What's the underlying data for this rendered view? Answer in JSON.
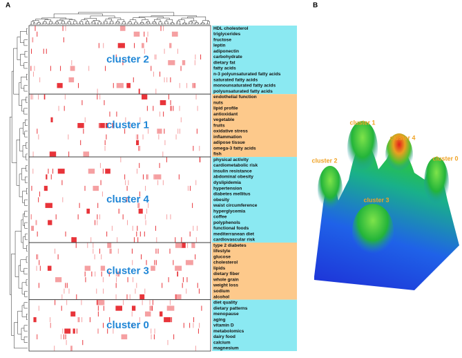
{
  "panels": {
    "a": "A",
    "b": "B"
  },
  "clusters": [
    {
      "name": "cluster 2",
      "color": "#8be9f2",
      "terms": [
        "HDL cholesterol",
        "triglycerides",
        "fructose",
        "leptin",
        "adiponectin",
        "carbohydrate",
        "dietary fat",
        "fatty acids",
        "n-3 polyunsaturated fatty acids",
        "saturated fatty acids",
        "monounsaturated fatty acids",
        "polyunsaturated fatty acids"
      ]
    },
    {
      "name": "cluster 1",
      "color": "#fdc98b",
      "terms": [
        "endothelial function",
        "nuts",
        "lipid profile",
        "antioxidant",
        "vegetable",
        "fruits",
        "oxidative stress",
        "inflammation",
        "adipose tissue",
        "omega-3 fatty acids",
        "fish"
      ]
    },
    {
      "name": "cluster 4",
      "color": "#8be9f2",
      "terms": [
        "physical activity",
        "cardiometabolic risk",
        "insulin resistance",
        "abdominal obesity",
        "dyslipidemia",
        "hypertension",
        "diabetes mellitus",
        "obesity",
        "waist circumference",
        "hyperglycemia",
        "coffee",
        "polyphenols",
        "functional foods",
        "mediterranean diet",
        "cardiovascular risk"
      ]
    },
    {
      "name": "cluster 3",
      "color": "#fdc98b",
      "terms": [
        "type 2 diabetes",
        "lifestyle",
        "glucose",
        "cholesterol",
        "lipids",
        "dietary fiber",
        "whole grain",
        "weight loss",
        "sodium",
        "alcohol"
      ]
    },
    {
      "name": "cluster 0",
      "color": "#8be9f2",
      "terms": [
        "diet quality",
        "dietary patterns",
        "menopause",
        "aging",
        "vitamin D",
        "metabolomics",
        "dairy food",
        "calcium",
        "magnesium"
      ]
    }
  ],
  "surface_labels": [
    "cluster 1",
    "cluster 4",
    "cluster 2",
    "cluster 0",
    "cluster 3"
  ],
  "label_color": "#1f86d6",
  "surface_label_color": "#f0a326"
}
